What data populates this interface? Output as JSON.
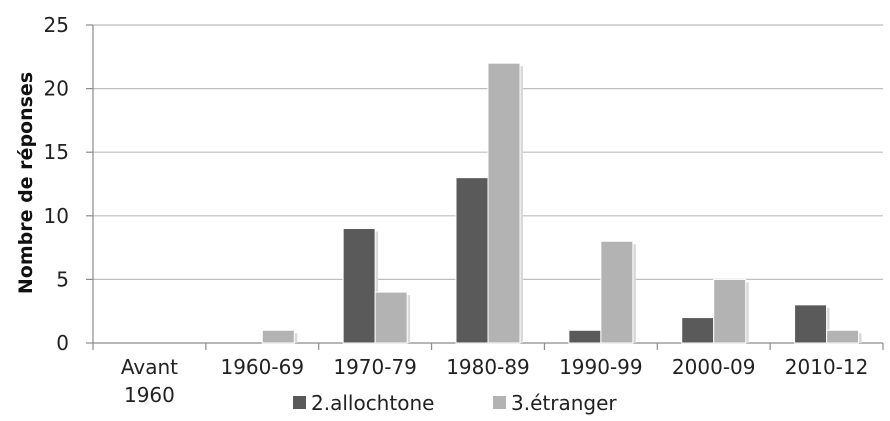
{
  "chart_data": {
    "type": "bar",
    "title": "",
    "xlabel": "",
    "ylabel": "Nombre de réponses",
    "ylim": [
      0,
      25
    ],
    "yticks": [
      0,
      5,
      10,
      15,
      20,
      25
    ],
    "grid": true,
    "legend_position": "bottom",
    "categories": [
      [
        "Avant",
        "1960"
      ],
      [
        "1960-69"
      ],
      [
        "1970-79"
      ],
      [
        "1980-89"
      ],
      [
        "1990-99"
      ],
      [
        "2000-09"
      ],
      [
        "2010-12"
      ]
    ],
    "series": [
      {
        "name": "2.allochtone",
        "color": "#5a5a5a",
        "values": [
          0,
          0,
          9,
          13,
          1,
          2,
          3
        ]
      },
      {
        "name": "3.étranger",
        "color": "#b3b3b3",
        "values": [
          0,
          1,
          4,
          22,
          8,
          5,
          1
        ]
      }
    ]
  }
}
